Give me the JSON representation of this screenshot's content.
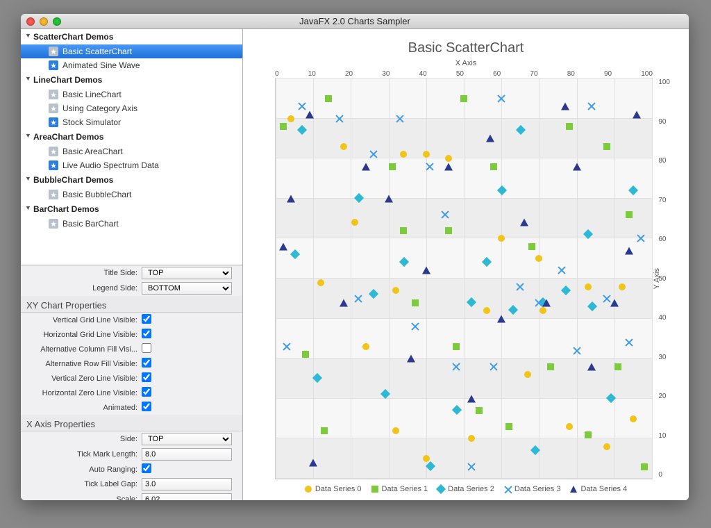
{
  "window": {
    "title": "JavaFX 2.0 Charts Sampler"
  },
  "tree": [
    {
      "type": "cat",
      "label": "ScatterChart Demos"
    },
    {
      "type": "item",
      "label": "Basic ScatterChart",
      "star": "gray",
      "selected": true
    },
    {
      "type": "item",
      "label": "Animated Sine Wave",
      "star": "blue"
    },
    {
      "type": "cat",
      "label": "LineChart Demos"
    },
    {
      "type": "item",
      "label": "Basic LineChart",
      "star": "gray"
    },
    {
      "type": "item",
      "label": "Using Category Axis",
      "star": "gray"
    },
    {
      "type": "item",
      "label": "Stock Simulator",
      "star": "blue"
    },
    {
      "type": "cat",
      "label": "AreaChart Demos"
    },
    {
      "type": "item",
      "label": "Basic AreaChart",
      "star": "gray"
    },
    {
      "type": "item",
      "label": "Live Audio Spectrum Data",
      "star": "blue"
    },
    {
      "type": "cat",
      "label": "BubbleChart Demos"
    },
    {
      "type": "item",
      "label": "Basic BubbleChart",
      "star": "gray"
    },
    {
      "type": "cat",
      "label": "BarChart Demos"
    },
    {
      "type": "item",
      "label": "Basic BarChart",
      "star": "gray"
    }
  ],
  "props": {
    "top": [
      {
        "label": "Title Side:",
        "type": "select",
        "value": "TOP"
      },
      {
        "label": "Legend Side:",
        "type": "select",
        "value": "BOTTOM"
      }
    ],
    "xy_section": "XY Chart Properties",
    "xy": [
      {
        "label": "Vertical Grid Line Visible:",
        "type": "check",
        "checked": true
      },
      {
        "label": "Horizontal Grid Line Visible:",
        "type": "check",
        "checked": true
      },
      {
        "label": "Alternative Column Fill Visi...",
        "type": "check",
        "checked": false
      },
      {
        "label": "Alternative Row Fill Visible:",
        "type": "check",
        "checked": true
      },
      {
        "label": "Vertical Zero Line Visible:",
        "type": "check",
        "checked": true
      },
      {
        "label": "Horizontal Zero Line Visible:",
        "type": "check",
        "checked": true
      },
      {
        "label": "Animated:",
        "type": "check",
        "checked": true
      }
    ],
    "xaxis_section": "X Axis Properties",
    "xaxis": [
      {
        "label": "Side:",
        "type": "select",
        "value": "TOP"
      },
      {
        "label": "Tick Mark Length:",
        "type": "text",
        "value": "8.0"
      },
      {
        "label": "Auto Ranging:",
        "type": "check",
        "checked": true
      },
      {
        "label": "Tick Label Gap:",
        "type": "text",
        "value": "3.0"
      },
      {
        "label": "Scale:",
        "type": "text",
        "value": "6.02"
      }
    ]
  },
  "chart": {
    "title": "Basic ScatterChart",
    "x_axis_label": "X Axis",
    "y_axis_label": "Y Axis",
    "xlim": [
      0,
      100
    ],
    "ylim": [
      0,
      100
    ],
    "xtick_step": 10,
    "ytick_step": 10,
    "background_color": "#f7f7f7",
    "alt_row_color": "#ededed",
    "grid_color": "#e0e0e0",
    "series": [
      {
        "name": "Data Series 0",
        "shape": "circle",
        "color": "#f0c419"
      },
      {
        "name": "Data Series 1",
        "shape": "square",
        "color": "#7bcb3b"
      },
      {
        "name": "Data Series 2",
        "shape": "diamond",
        "color": "#2db8d4"
      },
      {
        "name": "Data Series 3",
        "shape": "cross",
        "color": "#3d9ae8"
      },
      {
        "name": "Data Series 4",
        "shape": "triangle",
        "color": "#2a3a8f"
      }
    ],
    "points": {
      "0": [
        [
          4,
          90
        ],
        [
          18,
          83
        ],
        [
          34,
          81
        ],
        [
          40,
          81
        ],
        [
          46,
          80
        ],
        [
          21,
          64
        ],
        [
          12,
          49
        ],
        [
          32,
          47
        ],
        [
          56,
          42
        ],
        [
          71,
          42
        ],
        [
          83,
          48
        ],
        [
          92,
          48
        ],
        [
          67,
          26
        ],
        [
          78,
          13
        ],
        [
          95,
          15
        ],
        [
          32,
          12
        ],
        [
          40,
          5
        ],
        [
          52,
          10
        ],
        [
          24,
          33
        ],
        [
          60,
          60
        ],
        [
          70,
          55
        ],
        [
          88,
          8
        ]
      ],
      "1": [
        [
          2,
          88
        ],
        [
          14,
          95
        ],
        [
          31,
          78
        ],
        [
          34,
          62
        ],
        [
          37,
          44
        ],
        [
          46,
          62
        ],
        [
          50,
          95
        ],
        [
          58,
          78
        ],
        [
          68,
          58
        ],
        [
          78,
          88
        ],
        [
          88,
          83
        ],
        [
          94,
          66
        ],
        [
          98,
          3
        ],
        [
          54,
          17
        ],
        [
          48,
          33
        ],
        [
          8,
          31
        ],
        [
          13,
          12
        ],
        [
          62,
          13
        ],
        [
          73,
          28
        ],
        [
          83,
          11
        ],
        [
          91,
          28
        ]
      ],
      "2": [
        [
          6,
          57
        ],
        [
          8,
          88
        ],
        [
          27,
          47
        ],
        [
          23,
          71
        ],
        [
          35,
          55
        ],
        [
          42,
          4
        ],
        [
          49,
          18
        ],
        [
          53,
          45
        ],
        [
          57,
          55
        ],
        [
          61,
          73
        ],
        [
          64,
          43
        ],
        [
          72,
          45
        ],
        [
          78,
          48
        ],
        [
          85,
          44
        ],
        [
          90,
          21
        ],
        [
          96,
          73
        ],
        [
          84,
          62
        ],
        [
          66,
          88
        ],
        [
          12,
          26
        ],
        [
          30,
          22
        ],
        [
          70,
          8
        ]
      ],
      "3": [
        [
          7,
          93
        ],
        [
          17,
          90
        ],
        [
          22,
          45
        ],
        [
          26,
          81
        ],
        [
          37,
          38
        ],
        [
          41,
          78
        ],
        [
          45,
          66
        ],
        [
          48,
          28
        ],
        [
          52,
          3
        ],
        [
          60,
          95
        ],
        [
          65,
          48
        ],
        [
          70,
          44
        ],
        [
          76,
          52
        ],
        [
          80,
          32
        ],
        [
          84,
          93
        ],
        [
          88,
          45
        ],
        [
          94,
          34
        ],
        [
          97,
          60
        ],
        [
          3,
          33
        ],
        [
          58,
          28
        ],
        [
          33,
          90
        ]
      ],
      "4": [
        [
          4,
          70
        ],
        [
          9,
          91
        ],
        [
          18,
          44
        ],
        [
          24,
          78
        ],
        [
          30,
          70
        ],
        [
          36,
          30
        ],
        [
          40,
          52
        ],
        [
          46,
          78
        ],
        [
          52,
          20
        ],
        [
          57,
          85
        ],
        [
          60,
          40
        ],
        [
          66,
          64
        ],
        [
          72,
          44
        ],
        [
          77,
          93
        ],
        [
          80,
          78
        ],
        [
          84,
          28
        ],
        [
          90,
          44
        ],
        [
          94,
          57
        ],
        [
          96,
          91
        ],
        [
          2,
          58
        ],
        [
          10,
          4
        ]
      ]
    }
  }
}
